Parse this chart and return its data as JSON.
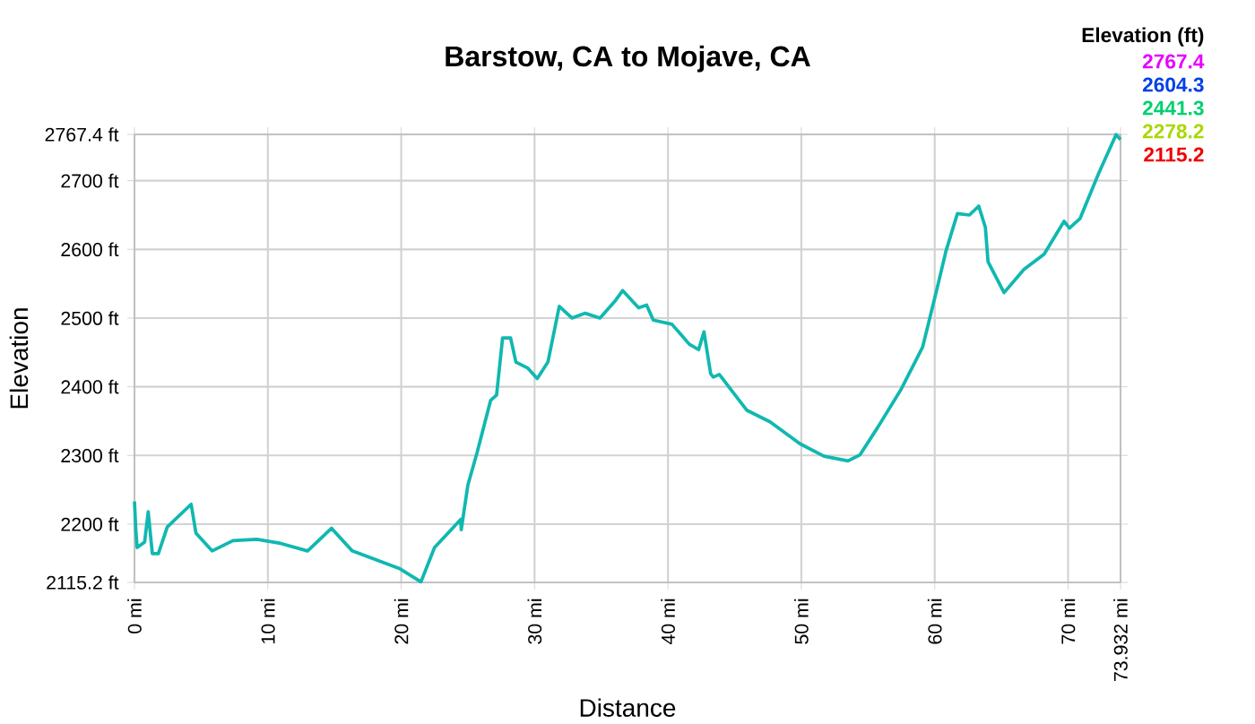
{
  "chart_data": {
    "type": "line",
    "title": "Barstow, CA to Mojave, CA",
    "xlabel": "Distance",
    "ylabel": "Elevation",
    "color": "#10b8b0",
    "annotations": [
      "Elevation (ft)",
      "2767.4",
      "2604.3",
      "2441.3",
      "2278.2",
      "2115.2"
    ],
    "x": [
      0,
      0.1,
      0.2,
      0.76,
      1.03,
      1.34,
      1.79,
      2.46,
      4.25,
      4.61,
      5.82,
      7.38,
      9.17,
      10.96,
      12.98,
      14.77,
      16.33,
      19.91,
      21.48,
      22.5,
      24.47,
      24.5,
      25.0,
      25.7,
      26.7,
      27.15,
      27.6,
      28.2,
      28.6,
      29.5,
      30.2,
      31.0,
      31.85,
      32.8,
      33.8,
      34.9,
      36.0,
      36.6,
      37.8,
      38.4,
      38.9,
      40.3,
      41.6,
      42.3,
      42.7,
      43.2,
      43.4,
      43.85,
      45.9,
      47.65,
      49.9,
      51.7,
      53.5,
      54.4,
      55.7,
      57.5,
      59.1,
      60.2,
      60.85,
      61.7,
      62.6,
      63.3,
      63.8,
      64.0,
      65.2,
      66.7,
      68.2,
      69.7,
      70.1,
      70.9,
      72.3,
      73.6,
      73.932
    ],
    "values": [
      2233,
      2192,
      2166,
      2174,
      2218,
      2157,
      2157,
      2196,
      2229,
      2187,
      2161,
      2176,
      2178,
      2172,
      2161,
      2194,
      2161,
      2135,
      2116,
      2166,
      2207,
      2192,
      2257,
      2305,
      2380,
      2388,
      2471,
      2471,
      2436,
      2427,
      2412,
      2436,
      2517,
      2500,
      2507,
      2500,
      2524,
      2540,
      2515,
      2519,
      2497,
      2491,
      2462,
      2454,
      2480,
      2419,
      2414,
      2418,
      2366,
      2349,
      2317,
      2299,
      2292,
      2301,
      2340,
      2397,
      2458,
      2545,
      2598,
      2652,
      2650,
      2663,
      2632,
      2582,
      2537,
      2571,
      2593,
      2641,
      2631,
      2645,
      2711,
      2767,
      2760
    ],
    "xlim": [
      0,
      73.932
    ],
    "ylim": [
      2115.2,
      2767.4
    ],
    "xticks": [
      {
        "value": 0,
        "label": "0 mi"
      },
      {
        "value": 10,
        "label": "10 mi"
      },
      {
        "value": 20,
        "label": "20 mi"
      },
      {
        "value": 30,
        "label": "30 mi"
      },
      {
        "value": 40,
        "label": "40 mi"
      },
      {
        "value": 50,
        "label": "50 mi"
      },
      {
        "value": 60,
        "label": "60 mi"
      },
      {
        "value": 70,
        "label": "70 mi"
      },
      {
        "value": 73.932,
        "label": "73.932 mi"
      }
    ],
    "yticks": [
      {
        "value": 2115.2,
        "label": "2115.2 ft"
      },
      {
        "value": 2200,
        "label": "2200 ft"
      },
      {
        "value": 2300,
        "label": "2300 ft"
      },
      {
        "value": 2400,
        "label": "2400 ft"
      },
      {
        "value": 2500,
        "label": "2500 ft"
      },
      {
        "value": 2600,
        "label": "2600 ft"
      },
      {
        "value": 2700,
        "label": "2700 ft"
      },
      {
        "value": 2767.4,
        "label": "2767.4 ft"
      }
    ],
    "grid": true
  }
}
